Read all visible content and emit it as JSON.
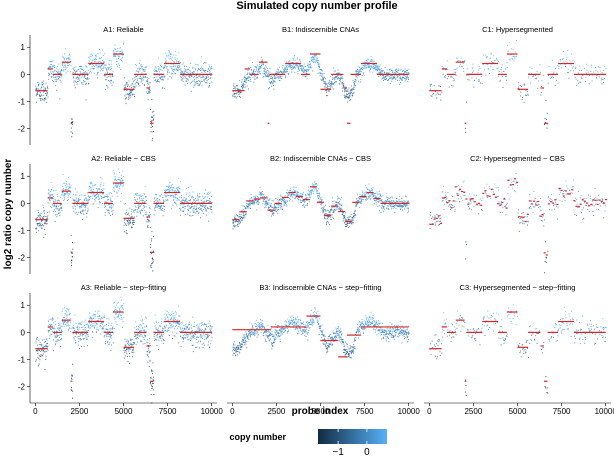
{
  "chart_data": {
    "type": "scatter",
    "title": "Simulated copy number profile",
    "xlabel": "probe index",
    "ylabel": "log2 ratio copy number",
    "xlim": [
      -300,
      10300
    ],
    "ylim": [
      -2.6,
      1.45
    ],
    "xticks": [
      0,
      2500,
      5000,
      7500,
      10000
    ],
    "xtick_labels": [
      "0",
      "2500",
      "5000",
      "7500",
      "10000"
    ],
    "yticks": [
      1,
      0,
      -1,
      -2
    ],
    "ytick_labels": [
      "1",
      "0",
      "-1",
      "-2"
    ],
    "legend": {
      "title": "copy number",
      "tick_labels": [
        "−1",
        "0"
      ],
      "tick_values": [
        -1,
        0
      ],
      "range": [
        -1.7,
        0.7
      ],
      "colors": [
        "#132b43",
        "#56b1f7"
      ],
      "placement": "bottom"
    },
    "segment_color": "#d62728",
    "true_segments": [
      {
        "start": 0,
        "end": 700,
        "value": -0.6
      },
      {
        "start": 700,
        "end": 1000,
        "value": 0.2
      },
      {
        "start": 1000,
        "end": 1500,
        "value": 0.0
      },
      {
        "start": 1500,
        "end": 2000,
        "value": 0.45
      },
      {
        "start": 2000,
        "end": 2100,
        "value": -1.8
      },
      {
        "start": 2100,
        "end": 3000,
        "value": 0.0
      },
      {
        "start": 3000,
        "end": 3900,
        "value": 0.4
      },
      {
        "start": 3900,
        "end": 4400,
        "value": 0.0
      },
      {
        "start": 4400,
        "end": 5000,
        "value": 0.75
      },
      {
        "start": 5000,
        "end": 5600,
        "value": -0.55
      },
      {
        "start": 5600,
        "end": 6300,
        "value": 0.0
      },
      {
        "start": 6300,
        "end": 6500,
        "value": -0.5
      },
      {
        "start": 6500,
        "end": 6700,
        "value": -1.8
      },
      {
        "start": 6700,
        "end": 7300,
        "value": 0.0
      },
      {
        "start": 7300,
        "end": 8200,
        "value": 0.4
      },
      {
        "start": 8200,
        "end": 10000,
        "value": 0.0
      }
    ],
    "panels": [
      {
        "id": "A1",
        "title": "A1: Reliable",
        "style": "reliable",
        "segments": "true",
        "noise": 0.22,
        "density": 1.0
      },
      {
        "id": "B1",
        "title": "B1: Indiscernible CNAs",
        "style": "smooth",
        "segments": "true",
        "noise": 0.13,
        "density": 1.0
      },
      {
        "id": "C1",
        "title": "C1: Hypersegmented",
        "style": "reliable",
        "segments": "true",
        "noise": 0.2,
        "density": 0.45
      },
      {
        "id": "A2",
        "title": "A2: Reliable − CBS",
        "style": "reliable",
        "segments": "true",
        "noise": 0.22,
        "density": 1.0
      },
      {
        "id": "B2",
        "title": "B2: Indiscernible CNAs − CBS",
        "style": "smooth",
        "segments": "smooth",
        "noise": 0.13,
        "density": 1.0
      },
      {
        "id": "C2",
        "title": "C2: Hypersegmented − CBS",
        "style": "reliable",
        "segments": "hyper",
        "noise": 0.2,
        "density": 0.45
      },
      {
        "id": "A3",
        "title": "A3: Reliable − step−fitting",
        "style": "reliable",
        "segments": "true",
        "noise": 0.22,
        "density": 1.0
      },
      {
        "id": "B3",
        "title": "B3: Indiscernible CNAs − step−fitting",
        "style": "smooth",
        "segments": "coarse",
        "noise": 0.13,
        "density": 1.0
      },
      {
        "id": "C3",
        "title": "C3: Hypersegmented − step−fitting",
        "style": "reliable",
        "segments": "true",
        "noise": 0.2,
        "density": 0.45
      }
    ]
  }
}
